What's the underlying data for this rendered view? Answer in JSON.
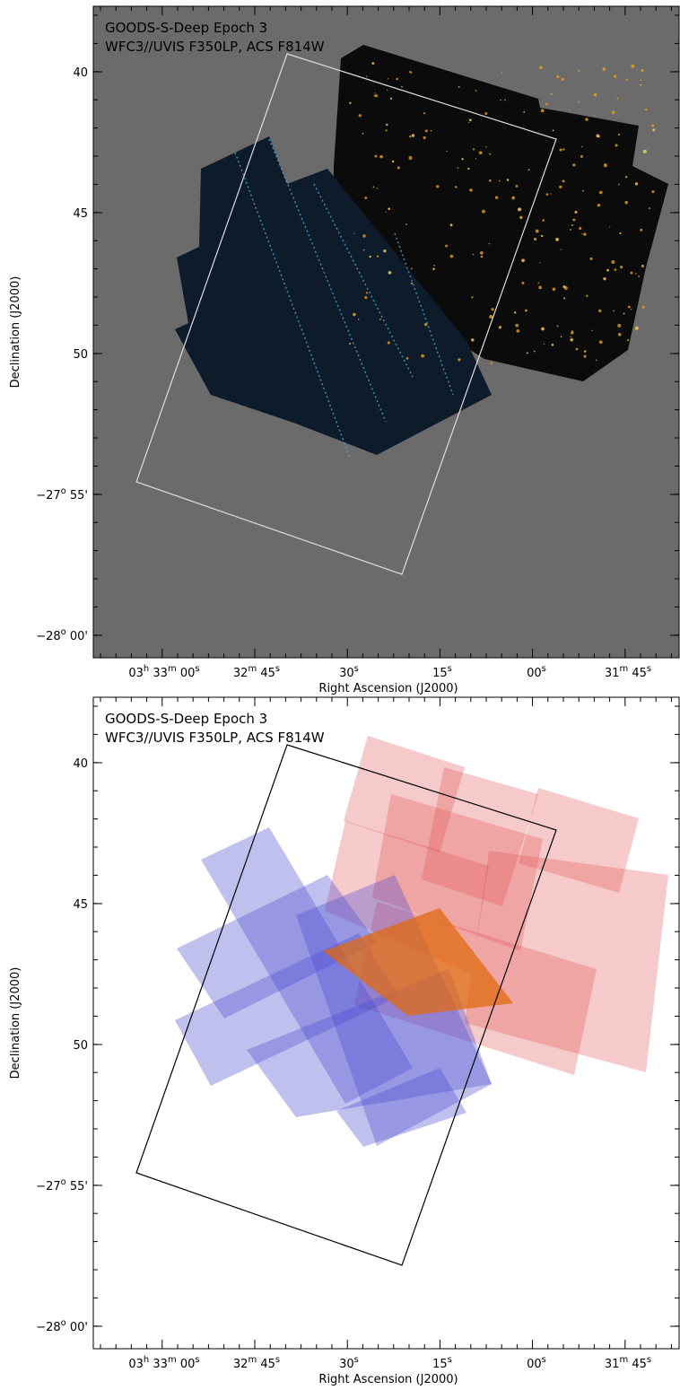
{
  "panels": [
    {
      "title": "GOODS-S-Deep Epoch 3",
      "subtitle": "WFC3//UVIS F350LP, ACS F814W",
      "y_axis_label": "Declination (J2000)",
      "x_axis_label": "Right Ascension (J2000)",
      "y_tick_labels": [
        [
          "40"
        ],
        [
          "45"
        ],
        [
          "50"
        ],
        [
          "−27",
          "o",
          " 55'"
        ],
        [
          "−28",
          "o",
          " 00'"
        ]
      ],
      "x_tick_labels": [
        [
          "03",
          "h",
          " 33",
          "m",
          " 00",
          "s"
        ],
        [
          "32",
          "m",
          " 45",
          "s"
        ],
        [
          "30",
          "s"
        ],
        [
          "15",
          "s"
        ],
        [
          "00",
          "s"
        ],
        [
          "31",
          "m",
          " 45",
          "s"
        ]
      ]
    },
    {
      "title": "GOODS-S-Deep Epoch 3",
      "subtitle": "WFC3//UVIS F350LP, ACS F814W",
      "y_axis_label": "Declination (J2000)",
      "x_axis_label": "Right Ascension (J2000)",
      "y_tick_labels": [
        [
          "40"
        ],
        [
          "45"
        ],
        [
          "50"
        ],
        [
          "−27",
          "o",
          " 55'"
        ],
        [
          "−28",
          "o",
          " 00'"
        ]
      ],
      "x_tick_labels": [
        [
          "03",
          "h",
          " 33",
          "m",
          " 00",
          "s"
        ],
        [
          "32",
          "m",
          " 45",
          "s"
        ],
        [
          "30",
          "s"
        ],
        [
          "15",
          "s"
        ],
        [
          "00",
          "s"
        ],
        [
          "31",
          "m",
          " 45",
          "s"
        ]
      ]
    }
  ]
}
